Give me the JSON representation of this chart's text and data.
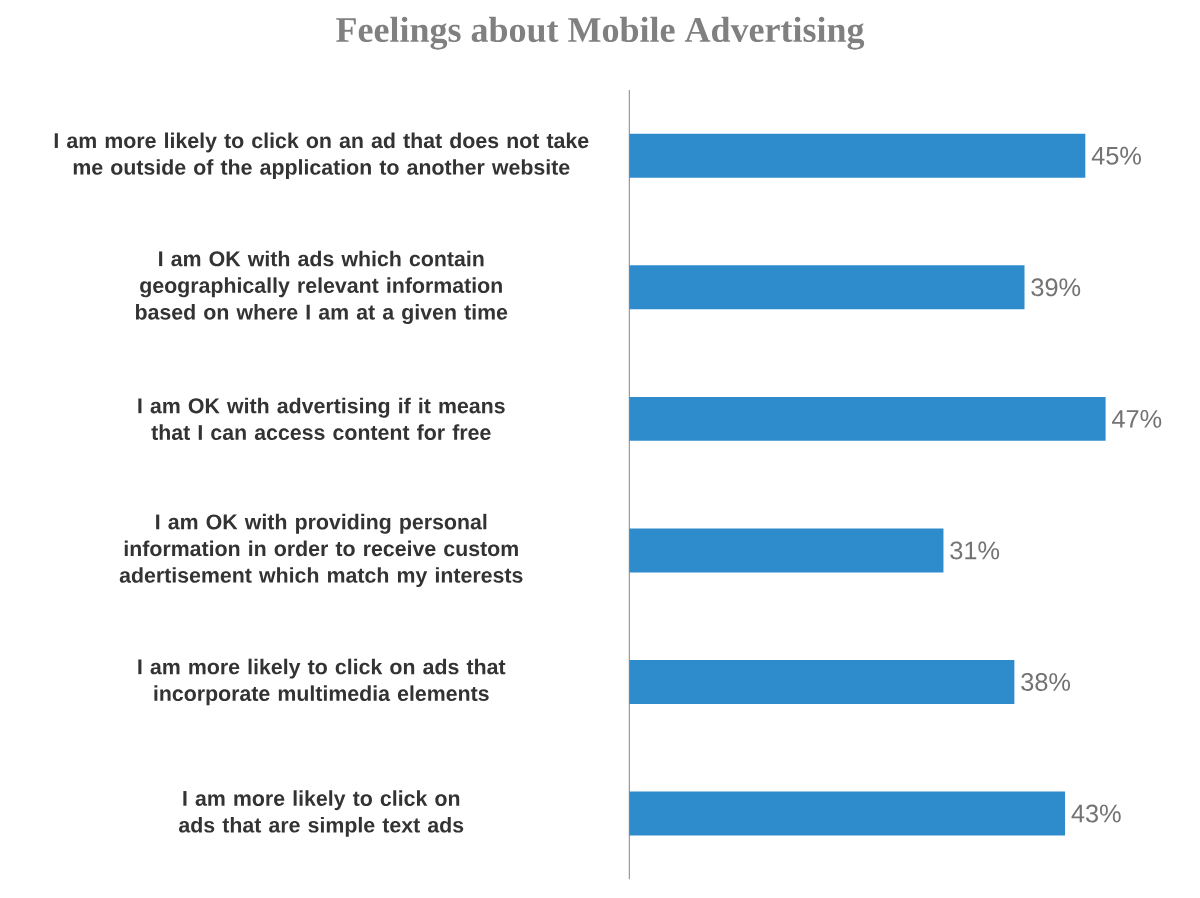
{
  "chart_data": {
    "type": "bar",
    "orientation": "horizontal",
    "title": "Feelings about Mobile Advertising",
    "categories": [
      "I am more likely to click on an ad that does not take me outside of the application to another website",
      "I am OK with ads which contain geographically relevant information based on where I am at a given time",
      "I am OK with advertising if it means that I can access content for free",
      "I am OK with providing personal information in order to receive custom adertisement which match my interests",
      "I am more likely to click on ads that incorporate multimedia elements",
      "I am more likely to click on ads that are simple text ads"
    ],
    "values": [
      45,
      39,
      47,
      31,
      38,
      43
    ],
    "color": "#2e8bcc",
    "value_labels": [
      "45%",
      "39%",
      "47%",
      "31%",
      "38%",
      "43%"
    ]
  }
}
